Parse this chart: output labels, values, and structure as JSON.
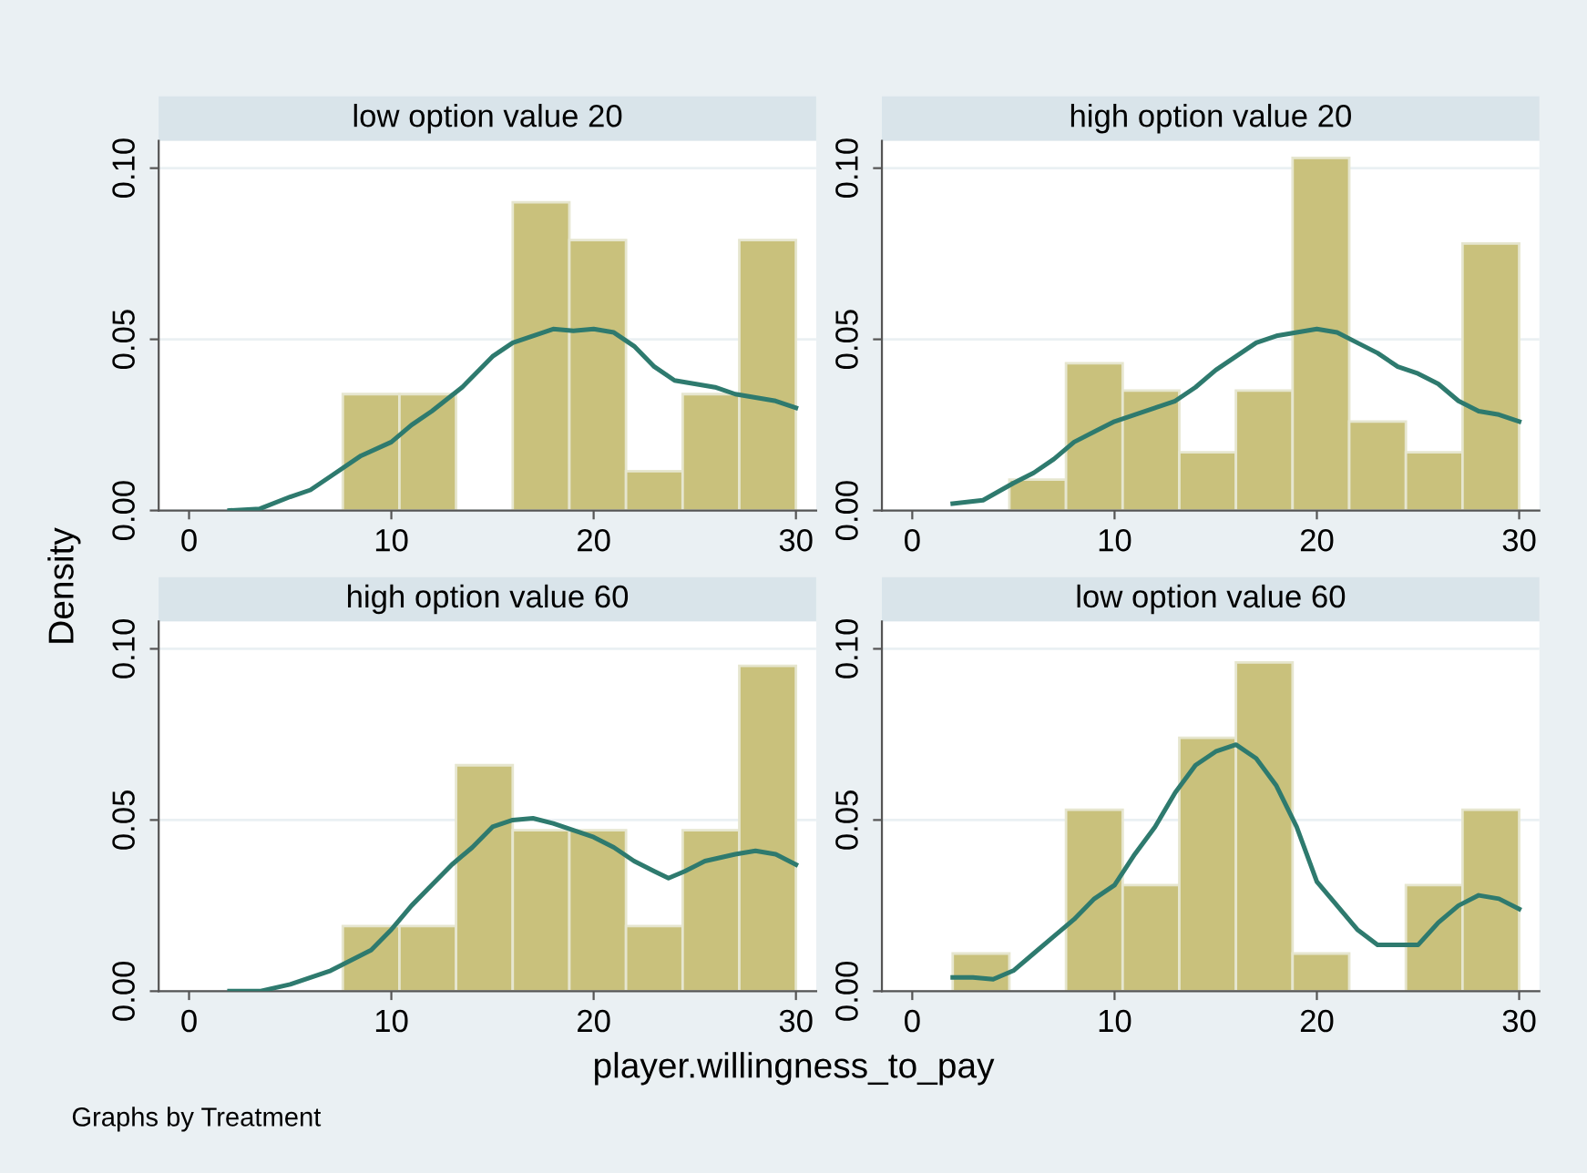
{
  "chart_data": [
    {
      "type": "histogram",
      "title": "low option value 20",
      "ylabel": "Density",
      "xlabel": "player.willingness_to_pay",
      "annotations": [
        "Graphs by Treatment"
      ],
      "xlim": [
        -1.5,
        31
      ],
      "ylim": [
        0,
        0.108
      ],
      "xticks": [
        0,
        10,
        20,
        30
      ],
      "yticks": [
        {
          "value": 0,
          "label": "0.00"
        },
        {
          "value": 0.05,
          "label": "0.05"
        },
        {
          "value": 0.1,
          "label": "0.10"
        }
      ],
      "grid": "y",
      "series": [
        {
          "color": "#c9c17c",
          "bins": [
            2,
            4.8,
            7.6,
            10.4,
            13.2,
            16,
            18.8,
            21.6,
            24.4,
            27.2,
            30
          ],
          "values": [
            0,
            0,
            0.034,
            0.034,
            0,
            0.09,
            0.079,
            0.0115,
            0.034,
            0.079
          ]
        },
        {
          "type": "line",
          "color": "#2e7a6e",
          "x": [
            2,
            3.5,
            5,
            6,
            7,
            8.5,
            10,
            11,
            12,
            13.5,
            15,
            16,
            17,
            18,
            19,
            20,
            21,
            22,
            23,
            24,
            25,
            26,
            27,
            28,
            29,
            30
          ],
          "values": [
            0,
            0.0005,
            0.004,
            0.006,
            0.01,
            0.016,
            0.02,
            0.025,
            0.029,
            0.036,
            0.045,
            0.049,
            0.051,
            0.053,
            0.0525,
            0.053,
            0.052,
            0.048,
            0.042,
            0.038,
            0.037,
            0.036,
            0.034,
            0.033,
            0.032,
            0.03
          ]
        }
      ]
    },
    {
      "type": "histogram",
      "title": "high option value 20",
      "xlim": [
        -1.5,
        31
      ],
      "ylim": [
        0,
        0.108
      ],
      "xticks": [
        0,
        10,
        20,
        30
      ],
      "yticks": [
        {
          "value": 0,
          "label": "0.00"
        },
        {
          "value": 0.05,
          "label": "0.05"
        },
        {
          "value": 0.1,
          "label": "0.10"
        }
      ],
      "grid": "y",
      "series": [
        {
          "color": "#c9c17c",
          "bins": [
            2,
            4.8,
            7.6,
            10.4,
            13.2,
            16,
            18.8,
            21.6,
            24.4,
            27.2,
            30
          ],
          "values": [
            0,
            0.009,
            0.043,
            0.035,
            0.017,
            0.035,
            0.103,
            0.026,
            0.017,
            0.078
          ]
        },
        {
          "type": "line",
          "color": "#2e7a6e",
          "x": [
            2,
            3.5,
            5,
            6,
            7,
            8,
            9,
            10,
            11,
            12,
            13,
            14,
            15,
            16,
            17,
            18,
            19,
            20,
            21,
            22,
            23,
            24,
            25,
            26,
            27,
            28,
            29,
            30
          ],
          "values": [
            0.002,
            0.003,
            0.008,
            0.011,
            0.015,
            0.02,
            0.023,
            0.026,
            0.028,
            0.03,
            0.032,
            0.036,
            0.041,
            0.045,
            0.049,
            0.051,
            0.052,
            0.053,
            0.052,
            0.049,
            0.046,
            0.042,
            0.04,
            0.037,
            0.032,
            0.029,
            0.028,
            0.026
          ]
        }
      ]
    },
    {
      "type": "histogram",
      "title": "high option value 60",
      "xlim": [
        -1.5,
        31
      ],
      "ylim": [
        0,
        0.108
      ],
      "xticks": [
        0,
        10,
        20,
        30
      ],
      "yticks": [
        {
          "value": 0,
          "label": "0.00"
        },
        {
          "value": 0.05,
          "label": "0.05"
        },
        {
          "value": 0.1,
          "label": "0.10"
        }
      ],
      "grid": "y",
      "series": [
        {
          "color": "#c9c17c",
          "bins": [
            2,
            4.8,
            7.6,
            10.4,
            13.2,
            16,
            18.8,
            21.6,
            24.4,
            27.2,
            30
          ],
          "values": [
            0,
            0,
            0.019,
            0.019,
            0.066,
            0.047,
            0.047,
            0.019,
            0.047,
            0.095
          ]
        },
        {
          "type": "line",
          "color": "#2e7a6e",
          "x": [
            2,
            3.5,
            5,
            6,
            7,
            8,
            9,
            10,
            11,
            12,
            13,
            14,
            15,
            16,
            17,
            18,
            19,
            20,
            21,
            22,
            23,
            23.7,
            24.5,
            25.5,
            27,
            28,
            29,
            30
          ],
          "values": [
            0,
            0,
            0.002,
            0.004,
            0.006,
            0.009,
            0.012,
            0.018,
            0.025,
            0.031,
            0.037,
            0.042,
            0.048,
            0.05,
            0.0505,
            0.049,
            0.047,
            0.045,
            0.042,
            0.038,
            0.035,
            0.033,
            0.035,
            0.038,
            0.04,
            0.041,
            0.04,
            0.037
          ]
        }
      ]
    },
    {
      "type": "histogram",
      "title": "low option value 60",
      "xlim": [
        -1.5,
        31
      ],
      "ylim": [
        0,
        0.108
      ],
      "xticks": [
        0,
        10,
        20,
        30
      ],
      "yticks": [
        {
          "value": 0,
          "label": "0.00"
        },
        {
          "value": 0.05,
          "label": "0.05"
        },
        {
          "value": 0.1,
          "label": "0.10"
        }
      ],
      "grid": "y",
      "series": [
        {
          "color": "#c9c17c",
          "bins": [
            2,
            4.8,
            7.6,
            10.4,
            13.2,
            16,
            18.8,
            21.6,
            24.4,
            27.2,
            30
          ],
          "values": [
            0.011,
            0,
            0.053,
            0.031,
            0.074,
            0.096,
            0.011,
            0,
            0.031,
            0.053
          ]
        },
        {
          "type": "line",
          "color": "#2e7a6e",
          "x": [
            2,
            3,
            4,
            5,
            6,
            7,
            8,
            9,
            10,
            11,
            12,
            13,
            14,
            15,
            16,
            17,
            18,
            19,
            20,
            21,
            22,
            23,
            24,
            25,
            26,
            27,
            28,
            29,
            30
          ],
          "values": [
            0.004,
            0.004,
            0.0035,
            0.006,
            0.011,
            0.016,
            0.021,
            0.027,
            0.031,
            0.04,
            0.048,
            0.058,
            0.066,
            0.07,
            0.072,
            0.068,
            0.06,
            0.048,
            0.032,
            0.025,
            0.018,
            0.0135,
            0.0135,
            0.0135,
            0.02,
            0.025,
            0.028,
            0.027,
            0.024
          ]
        }
      ]
    }
  ]
}
